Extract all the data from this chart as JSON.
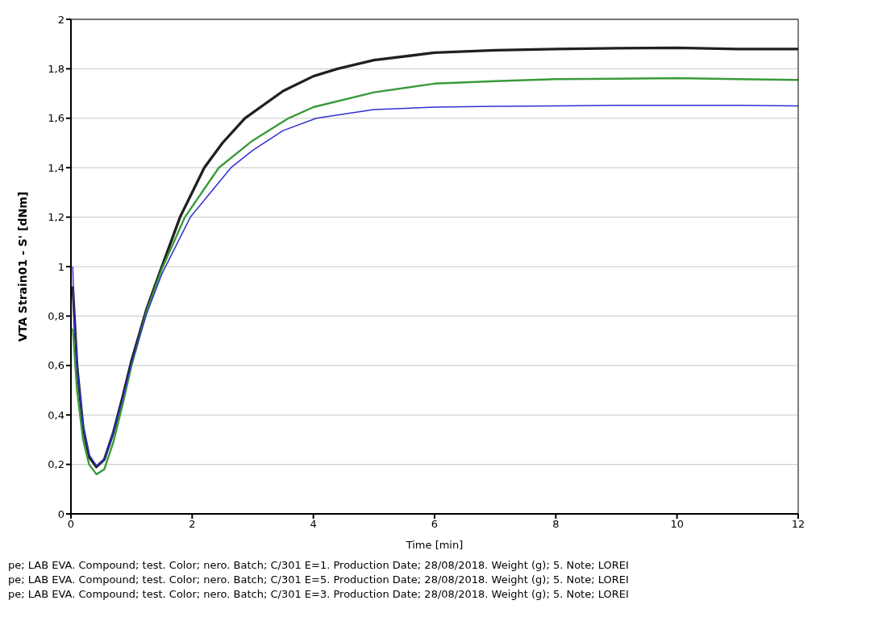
{
  "chart_data": {
    "type": "line",
    "xlabel": "Time [min]",
    "ylabel": "VTA Strain01 - S' [dNm]",
    "xlim": [
      0,
      12
    ],
    "xticks": [
      0,
      2,
      4,
      6,
      8,
      10,
      12
    ],
    "ylim": [
      0,
      2
    ],
    "yticks": [
      0,
      {
        "value": 0.2,
        "label": "0,2"
      },
      {
        "value": 0.4,
        "label": "0,4"
      },
      {
        "value": 0.6,
        "label": "0,6"
      },
      {
        "value": 0.8,
        "label": "0,8"
      },
      1,
      {
        "value": 1.2,
        "label": "1,2"
      },
      {
        "value": 1.4,
        "label": "1,4"
      },
      {
        "value": 1.6,
        "label": "1,6"
      },
      {
        "value": 1.8,
        "label": "1,8"
      },
      2
    ],
    "grid": "y",
    "legend": false,
    "marker": "none",
    "line_style": "solid",
    "series": [
      {
        "color": "#202020",
        "x": [
          0.03,
          0.1,
          0.2,
          0.3,
          0.42,
          0.55,
          0.7,
          0.85,
          1,
          1.25,
          1.5,
          1.8,
          2.2,
          2.5,
          2.87,
          3.5,
          4,
          4.4,
          5,
          6,
          7,
          8,
          9,
          10,
          11,
          12
        ],
        "values": [
          0.92,
          0.6,
          0.35,
          0.23,
          0.19,
          0.22,
          0.33,
          0.47,
          0.62,
          0.83,
          1.0,
          1.2,
          1.4,
          1.5,
          1.6,
          1.71,
          1.77,
          1.8,
          1.835,
          1.865,
          1.875,
          1.88,
          1.883,
          1.885,
          1.88,
          1.88
        ]
      },
      {
        "color": "#3a9a3a",
        "x": [
          0.03,
          0.1,
          0.2,
          0.3,
          0.42,
          0.55,
          0.7,
          0.85,
          1,
          1.25,
          1.5,
          1.88,
          2.44,
          3,
          3.59,
          4,
          5,
          6,
          7,
          8,
          9,
          10,
          11,
          12
        ],
        "values": [
          0.75,
          0.5,
          0.3,
          0.2,
          0.16,
          0.18,
          0.29,
          0.44,
          0.6,
          0.82,
          0.99,
          1.2,
          1.4,
          1.51,
          1.6,
          1.645,
          1.705,
          1.74,
          1.75,
          1.758,
          1.76,
          1.762,
          1.758,
          1.755
        ]
      },
      {
        "color": "#3030d0",
        "x": [
          0.03,
          0.05,
          0.1,
          0.2,
          0.3,
          0.42,
          0.55,
          0.7,
          0.85,
          1,
          1.25,
          1.5,
          1.97,
          2.64,
          3,
          3.5,
          4.05,
          5,
          6,
          7,
          8,
          9,
          10,
          11,
          12
        ],
        "values": [
          1.0,
          0.8,
          0.6,
          0.36,
          0.24,
          0.195,
          0.22,
          0.33,
          0.46,
          0.61,
          0.81,
          0.97,
          1.2,
          1.4,
          1.47,
          1.55,
          1.6,
          1.635,
          1.645,
          1.648,
          1.65,
          1.652,
          1.652,
          1.652,
          1.65
        ]
      }
    ],
    "annotations": [
      "pe; LAB EVA. Compound; test. Color; nero. Batch; C/301 E=1. Production Date; 28/08/2018. Weight (g); 5. Note; LOREI",
      "pe; LAB EVA. Compound; test. Color; nero. Batch; C/301 E=5. Production Date; 28/08/2018. Weight (g); 5. Note; LOREI",
      "pe; LAB EVA. Compound; test. Color; nero. Batch; C/301 E=3. Production Date; 28/08/2018. Weight (g); 5. Note; LOREI"
    ]
  }
}
